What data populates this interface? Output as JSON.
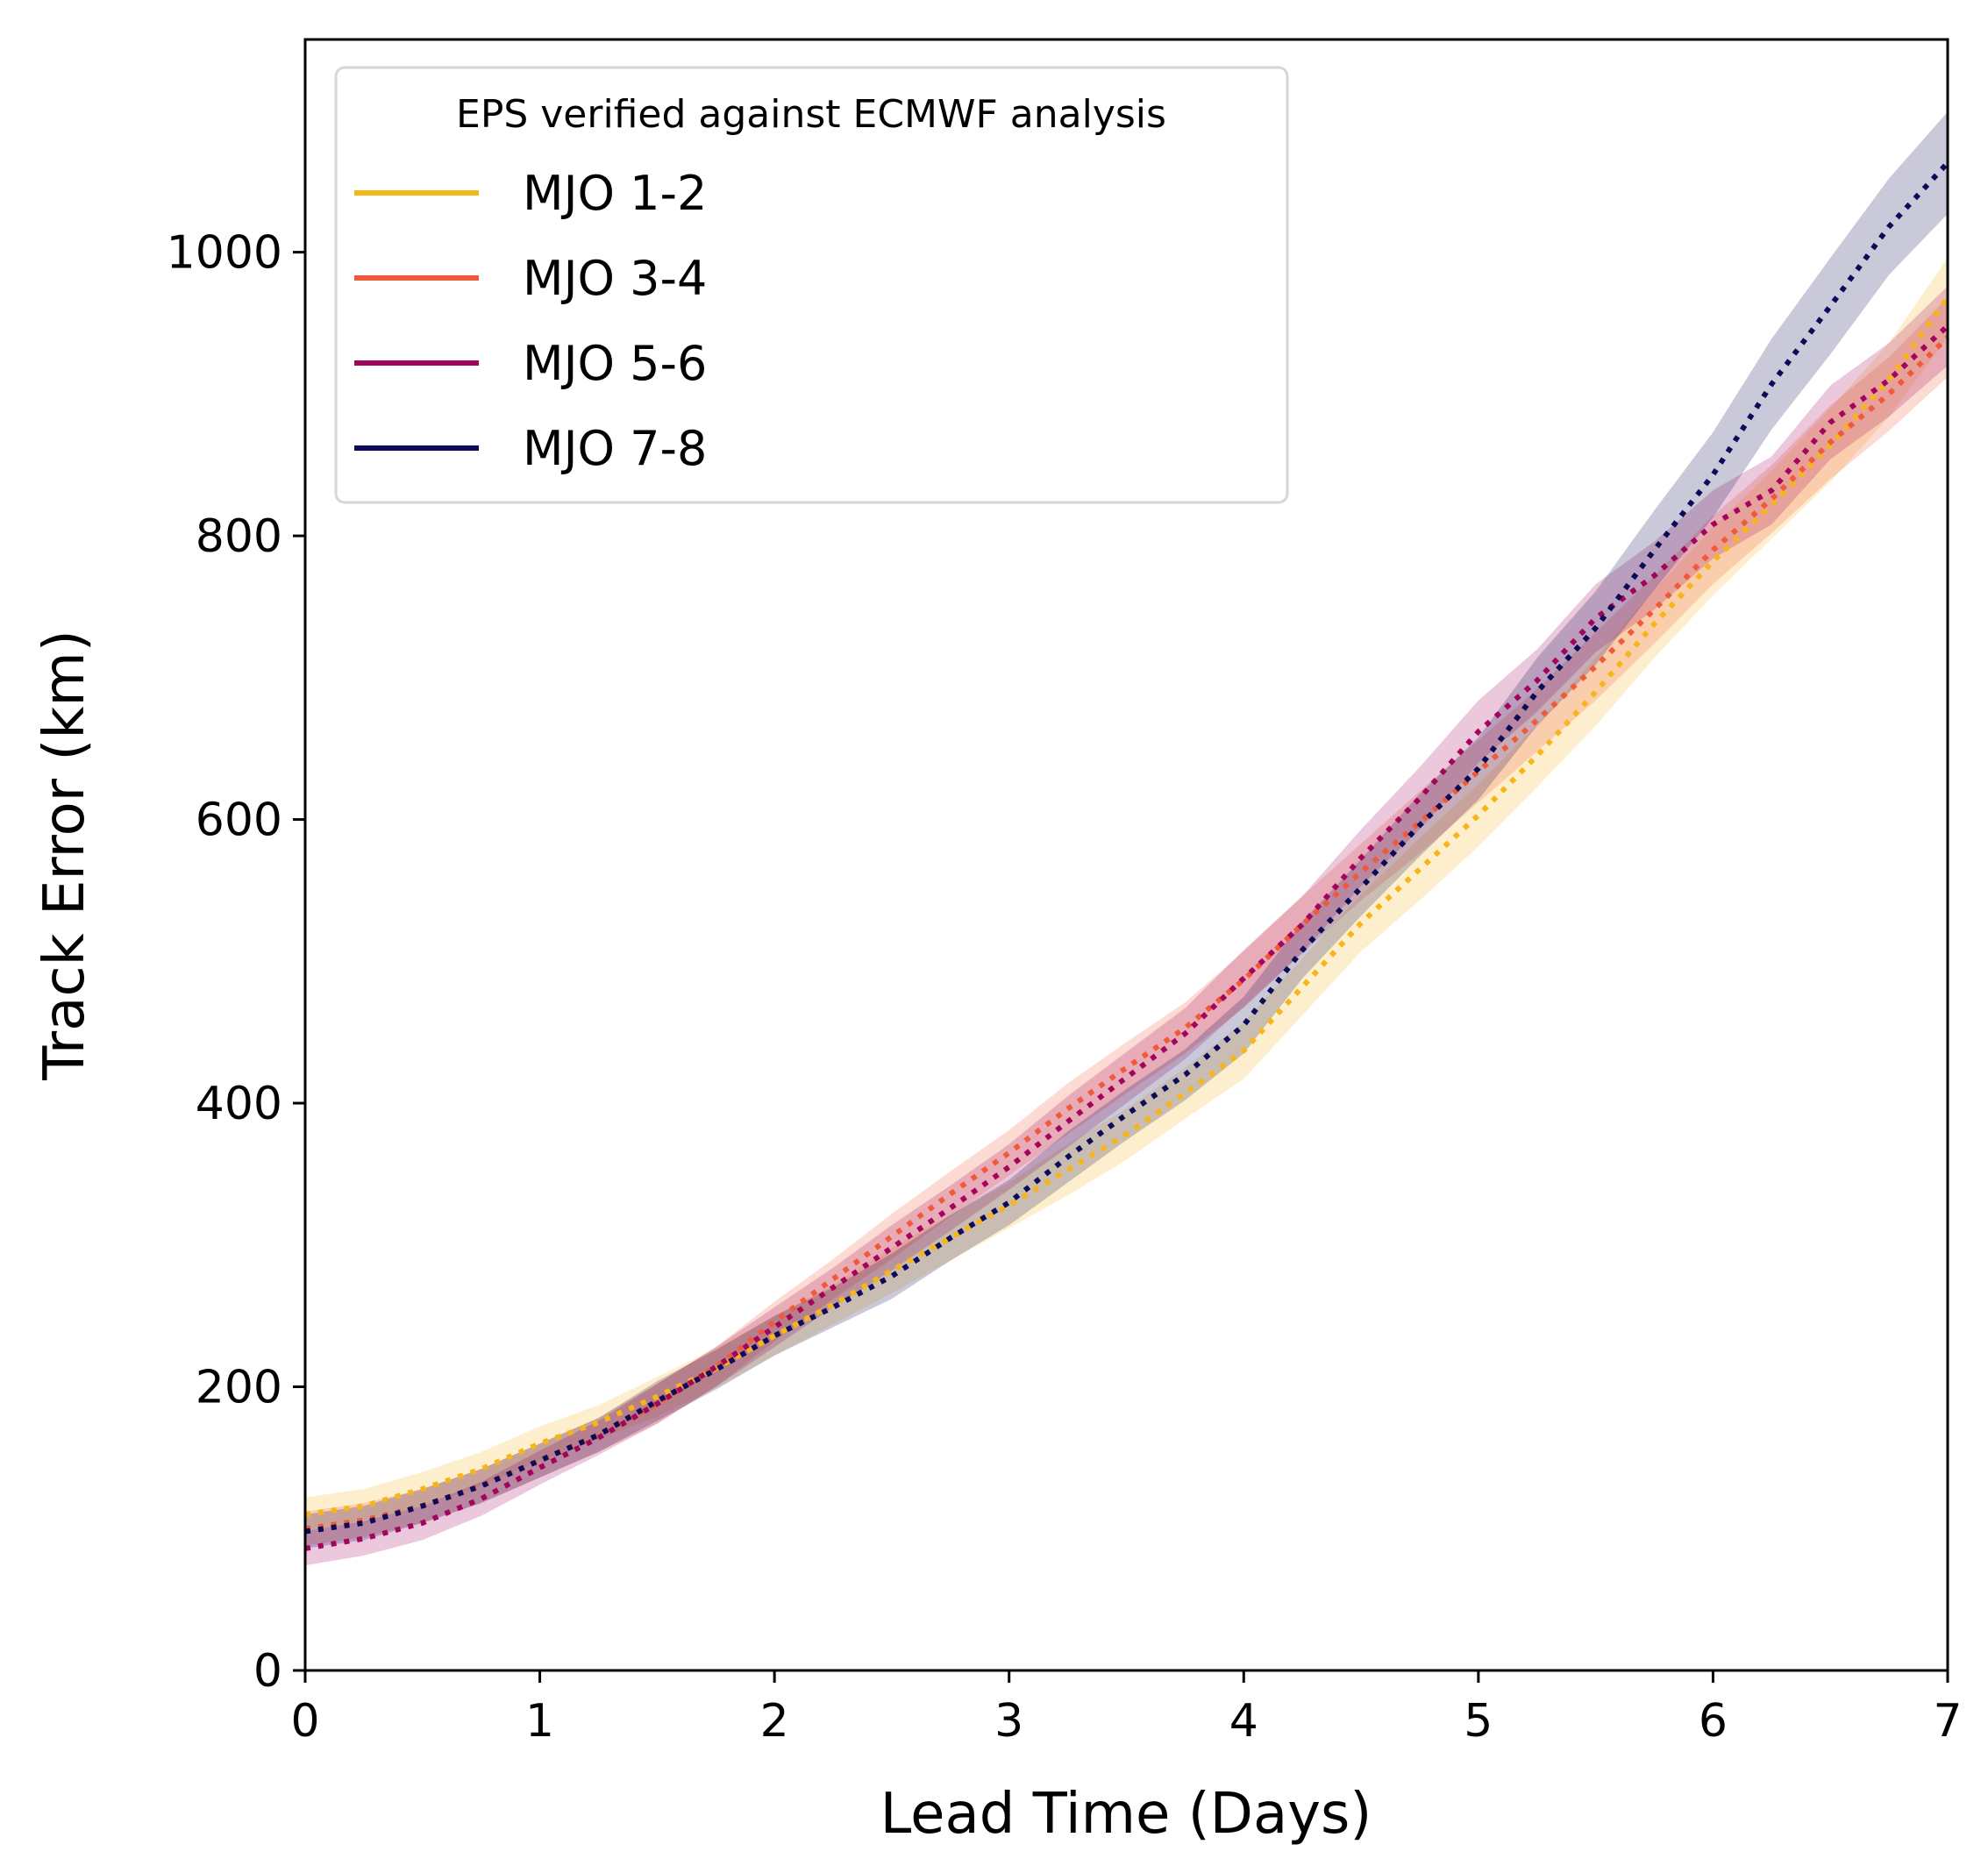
{
  "chart_data": {
    "type": "line",
    "xlabel": "Lead Time (Days)",
    "ylabel": "Track Error (km)",
    "xlim": [
      0,
      7
    ],
    "ylim": [
      0,
      1150
    ],
    "xticks": [
      0,
      1,
      2,
      3,
      4,
      5,
      6,
      7
    ],
    "yticks": [
      0,
      200,
      400,
      600,
      800,
      1000
    ],
    "grid": false,
    "legend": {
      "title": "EPS verified against ECMWF analysis",
      "placement": "upper-left"
    },
    "x": [
      0,
      0.25,
      0.5,
      0.75,
      1.0,
      1.25,
      1.5,
      1.75,
      2.0,
      2.25,
      2.5,
      2.75,
      3.0,
      3.25,
      3.5,
      3.75,
      4.0,
      4.25,
      4.5,
      4.75,
      5.0,
      5.25,
      5.5,
      5.75,
      6.0,
      6.25,
      6.5,
      6.75,
      7.0
    ],
    "series": [
      {
        "name": "MJO 1-2",
        "color": "#f6b61a",
        "values": [
          110,
          116,
          128,
          142,
          160,
          175,
          193,
          213,
          236,
          258,
          282,
          305,
          328,
          353,
          378,
          407,
          437,
          482,
          527,
          565,
          603,
          645,
          690,
          738,
          782,
          822,
          864,
          910,
          968
        ],
        "band": [
          12,
          12,
          12,
          12,
          12,
          12,
          14,
          14,
          14,
          14,
          16,
          16,
          16,
          18,
          18,
          18,
          20,
          20,
          20,
          22,
          22,
          22,
          24,
          24,
          24,
          24,
          26,
          26,
          28
        ]
      },
      {
        "name": "MJO 3-4",
        "color": "#f05a3a",
        "values": [
          100,
          106,
          116,
          130,
          148,
          166,
          188,
          214,
          246,
          276,
          306,
          336,
          365,
          396,
          425,
          453,
          487,
          526,
          563,
          598,
          634,
          670,
          708,
          748,
          790,
          826,
          866,
          900,
          940
        ],
        "band": [
          12,
          12,
          12,
          12,
          12,
          12,
          14,
          14,
          14,
          14,
          16,
          16,
          16,
          18,
          18,
          18,
          20,
          20,
          20,
          22,
          22,
          22,
          24,
          24,
          24,
          24,
          26,
          26,
          28
        ]
      },
      {
        "name": "MJO 5-6",
        "color": "#a3055c",
        "values": [
          86,
          93,
          104,
          121,
          143,
          164,
          188,
          214,
          242,
          270,
          298,
          326,
          355,
          387,
          418,
          449,
          488,
          526,
          573,
          615,
          662,
          698,
          742,
          772,
          808,
          832,
          880,
          910,
          948
        ],
        "band": [
          12,
          12,
          12,
          12,
          12,
          12,
          14,
          14,
          14,
          14,
          16,
          16,
          16,
          18,
          18,
          18,
          20,
          20,
          20,
          22,
          22,
          22,
          24,
          24,
          24,
          24,
          26,
          26,
          28
        ]
      },
      {
        "name": "MJO 7-8",
        "color": "#0d0a57",
        "values": [
          98,
          104,
          116,
          130,
          148,
          166,
          190,
          212,
          236,
          256,
          278,
          305,
          330,
          362,
          392,
          420,
          455,
          508,
          552,
          596,
          636,
          690,
          735,
          790,
          843,
          907,
          962,
          1018,
          1063
        ],
        "band": [
          12,
          12,
          12,
          12,
          12,
          12,
          14,
          14,
          14,
          14,
          16,
          16,
          16,
          18,
          18,
          18,
          20,
          20,
          20,
          22,
          22,
          24,
          26,
          28,
          30,
          32,
          34,
          34,
          36
        ]
      }
    ]
  }
}
